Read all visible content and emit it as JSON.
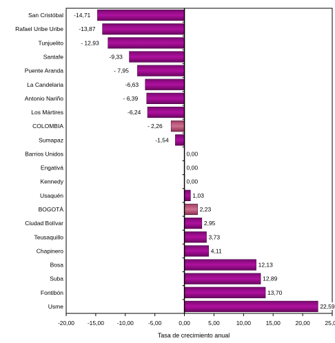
{
  "chart_data": {
    "type": "bar",
    "orientation": "horizontal",
    "categories": [
      "San Cristóbal",
      "Rafael Uribe Uribe",
      "Tunjuelito",
      "Santafe",
      "Puente Aranda",
      "La Candelaria",
      "Antonio Nariño",
      "Los Mártires",
      "COLOMBIA",
      "Sumapaz",
      "Barrios Unidos",
      "Engativá",
      "Kennedy",
      "Usaquén",
      "BOGOTÁ",
      "Ciudad Bolívar",
      "Teusaquillo",
      "Chapinero",
      "Bosa",
      "Suba",
      "Fontibón",
      "Usme"
    ],
    "values": [
      -14.71,
      -13.87,
      -12.93,
      -9.33,
      -7.95,
      -6.63,
      -6.39,
      -6.24,
      -2.26,
      -1.54,
      0.0,
      0.0,
      0.0,
      1.03,
      2.23,
      2.95,
      3.73,
      4.11,
      12.13,
      12.89,
      13.7,
      22.59
    ],
    "value_labels": [
      "-14,71",
      "-13,87",
      "- 12,93",
      "-9,33",
      "- 7,95",
      "-6,63",
      "- 6,39",
      "-6,24",
      "- 2,26",
      "-1,54",
      "0,00",
      "0,00",
      "0,00",
      "1,03",
      "2,23",
      "2,95",
      "3,73",
      "4,11",
      "12,13",
      "12,89",
      "13,70",
      "22,59"
    ],
    "highlight": [
      "COLOMBIA",
      "BOGOTÁ"
    ],
    "xlabel": "Tasa de crecimiento anual",
    "ylabel": "",
    "xlim": [
      -20,
      25
    ],
    "xticks": [
      -20,
      -15,
      -10,
      -5,
      0,
      5,
      10,
      15,
      20,
      25
    ],
    "xtick_labels": [
      "-20,00",
      "-15,00",
      "-10,00",
      "-5,00",
      "0,00",
      "5,00",
      "10,00",
      "15,00",
      "20,00",
      "25,00"
    ],
    "grid": false,
    "colors": {
      "bar": "#b0109f",
      "bar_highlight": "#d07090",
      "axis": "#000000"
    }
  }
}
